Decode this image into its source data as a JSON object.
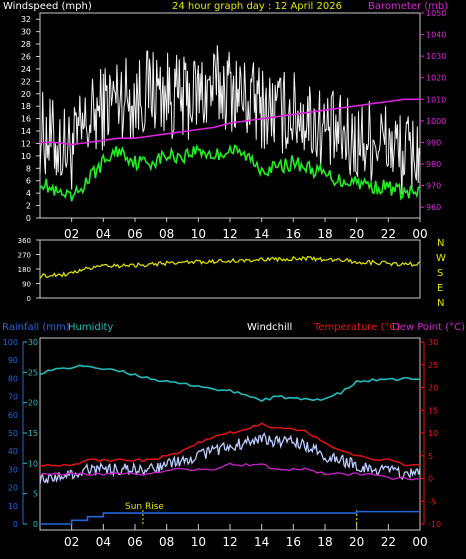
{
  "header": {
    "windspeed_label": "Windspeed (mph)",
    "title": "24 hour graph day : 12 April 2026",
    "barometer_label": "Barometer (mb)"
  },
  "wind_dir_labels": [
    "N",
    "W",
    "S",
    "E",
    "N"
  ],
  "lower_header": {
    "rainfall_label": "Rainfall (mm)",
    "humidity_label": "Humidity",
    "windchill_label": "Windchill",
    "temperature_label": "Temperature (°C)",
    "dewpoint_label": "Dew Point (°C)"
  },
  "sunrise_label": "Sun Rise",
  "colors": {
    "gust": "#f2f2f2",
    "average_wind": "#22ee22",
    "barometer": "#dd22dd",
    "wind_direction": "#e6e600",
    "humidity": "#22bbbb",
    "temperature": "#ee1111",
    "windchill": "#bbccff",
    "dewpoint": "#cc22cc",
    "rainfall": "#2266dd",
    "sunrise_marker": "#e6e600"
  },
  "chart_data": [
    {
      "type": "line",
      "name": "wind-barometer",
      "title": "24 hour graph day : 12 April 2026",
      "x_ticks": [
        "02",
        "04",
        "06",
        "08",
        "10",
        "12",
        "14",
        "16",
        "18",
        "20",
        "22",
        "00"
      ],
      "ylabel": "Windspeed (mph)",
      "ylim": [
        0,
        33
      ],
      "y_ticks": [
        "0",
        "2",
        "4",
        "6",
        "8",
        "10",
        "12",
        "14",
        "16",
        "18",
        "20",
        "22",
        "24",
        "26",
        "28",
        "30",
        "32"
      ],
      "y2label": "Barometer (mb)",
      "y2lim": [
        955,
        1050
      ],
      "y2_ticks": [
        "960",
        "970",
        "980",
        "990",
        "1000",
        "1010",
        "1020",
        "1030",
        "1040",
        "1050"
      ],
      "x_hours": [
        0,
        1,
        2,
        3,
        4,
        5,
        6,
        7,
        8,
        9,
        10,
        11,
        12,
        13,
        14,
        15,
        16,
        17,
        18,
        19,
        20,
        21,
        22,
        23,
        24
      ],
      "series": [
        {
          "values": [
            14,
            12,
            11,
            15,
            18,
            20,
            19,
            21,
            20,
            19,
            20,
            21,
            21,
            19,
            18,
            17,
            17,
            16,
            14,
            13,
            12,
            13,
            12,
            10,
            11
          ]
        },
        {
          "values": [
            6,
            4,
            3,
            6,
            9,
            11,
            9,
            9,
            10,
            10,
            11,
            10,
            11,
            10,
            8,
            8,
            9,
            8,
            7,
            6,
            6,
            5,
            5,
            4,
            4
          ]
        },
        {
          "values": [
            990,
            990,
            989,
            990,
            991,
            992,
            992,
            993,
            994,
            995,
            996,
            997,
            999,
            1000,
            1001,
            1002,
            1003,
            1004,
            1005,
            1006,
            1007,
            1008,
            1009,
            1010,
            1010
          ]
        }
      ]
    },
    {
      "type": "line",
      "name": "wind-direction",
      "ylim": [
        0,
        360
      ],
      "y_ticks": [
        "0",
        "90",
        "180",
        "270",
        "360"
      ],
      "x_hours": [
        0,
        1,
        2,
        3,
        4,
        5,
        6,
        7,
        8,
        9,
        10,
        11,
        12,
        13,
        14,
        15,
        16,
        17,
        18,
        19,
        20,
        21,
        22,
        23,
        24
      ],
      "series": [
        {
          "values": [
            135,
            145,
            150,
            185,
            205,
            200,
            205,
            210,
            215,
            220,
            225,
            225,
            230,
            235,
            240,
            240,
            245,
            245,
            240,
            235,
            225,
            220,
            215,
            210,
            210
          ]
        }
      ]
    },
    {
      "type": "line",
      "name": "temperature-humidity-rain",
      "x_ticks": [
        "02",
        "04",
        "06",
        "08",
        "10",
        "12",
        "14",
        "16",
        "18",
        "20",
        "22",
        "00"
      ],
      "y_left_ticks": [
        "0",
        "10",
        "20",
        "30",
        "40",
        "50",
        "60",
        "70",
        "80",
        "90",
        "100"
      ],
      "y_humidity_ticks": [
        "0",
        "5",
        "10",
        "15",
        "20",
        "25",
        "30"
      ],
      "y_right_ticks": [
        "-10",
        "-5",
        "0",
        "5",
        "10",
        "15",
        "20",
        "25",
        "30"
      ],
      "ylim_left": [
        0,
        100
      ],
      "ylim_humidity": [
        0,
        30
      ],
      "ylim_right": [
        -10,
        30
      ],
      "x_hours": [
        0,
        1,
        2,
        3,
        4,
        5,
        6,
        7,
        8,
        9,
        10,
        11,
        12,
        13,
        14,
        15,
        16,
        17,
        18,
        19,
        20,
        21,
        22,
        23,
        24
      ],
      "series": [
        {
          "values": [
            83,
            85,
            86,
            87,
            85,
            84,
            82,
            80,
            78,
            77,
            76,
            74,
            73,
            71,
            68,
            70,
            69,
            68,
            69,
            72,
            78,
            79,
            79,
            80,
            79
          ]
        },
        {
          "values": [
            3,
            3,
            3,
            4,
            4,
            4,
            4,
            4,
            5,
            6,
            8,
            9,
            10,
            11,
            12,
            11,
            11,
            10,
            8,
            6,
            5,
            4,
            4,
            3,
            3
          ]
        },
        {
          "values": [
            0,
            0,
            1,
            2,
            2,
            2,
            2,
            2,
            3,
            4,
            5,
            6,
            7,
            8,
            9,
            8,
            8,
            7,
            5,
            4,
            3,
            2,
            2,
            1,
            1
          ]
        },
        {
          "values": [
            1,
            1,
            1,
            1,
            1,
            1,
            1,
            1,
            2,
            2,
            2,
            2,
            3,
            3,
            3,
            2,
            2,
            2,
            1,
            1,
            1,
            1,
            0,
            0,
            0
          ]
        },
        {
          "values": [
            0,
            0,
            0.5,
            1,
            1.5,
            1.5,
            1.5,
            1.5,
            1.5,
            1.5,
            1.5,
            1.5,
            1.5,
            1.5,
            1.5,
            1.5,
            1.5,
            1.5,
            1.5,
            1.5,
            1.7,
            1.7,
            1.7,
            1.7,
            1.7
          ]
        }
      ]
    }
  ]
}
